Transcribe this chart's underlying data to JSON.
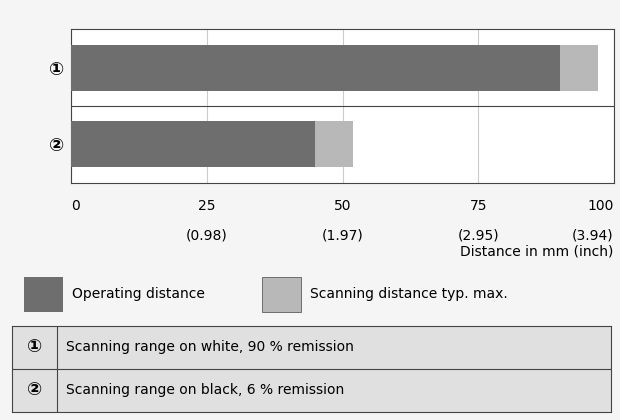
{
  "bar1_operating": 90,
  "bar1_scanning": 7,
  "bar2_operating": 45,
  "bar2_scanning": 7,
  "xlim": [
    0,
    100
  ],
  "tick_positions": [
    0,
    25,
    50,
    75,
    100
  ],
  "xtick_labels_mm": [
    "0",
    "25",
    "50",
    "75",
    "100"
  ],
  "xtick_labels_inch": [
    "",
    "(0.98)",
    "(1.97)",
    "(2.95)",
    "(3.94)"
  ],
  "xlabel": "Distance in mm (inch)",
  "color_operating": "#6e6e6e",
  "color_scanning": "#b8b8b8",
  "color_bg_chart": "#ffffff",
  "color_bg_label_col": "#e0e0e0",
  "color_border": "#444444",
  "color_gridline": "#cccccc",
  "color_bg_page": "#f5f5f5",
  "color_notes_bg": "#e0e0e0",
  "legend_operating": "Operating distance",
  "legend_scanning": "Scanning distance typ. max.",
  "row1_label": "①",
  "row2_label": "②",
  "note1_label": "①",
  "note2_label": "②",
  "note1_text": "Scanning range on white, 90 % remission",
  "note2_text": "Scanning range on black, 6 % remission"
}
